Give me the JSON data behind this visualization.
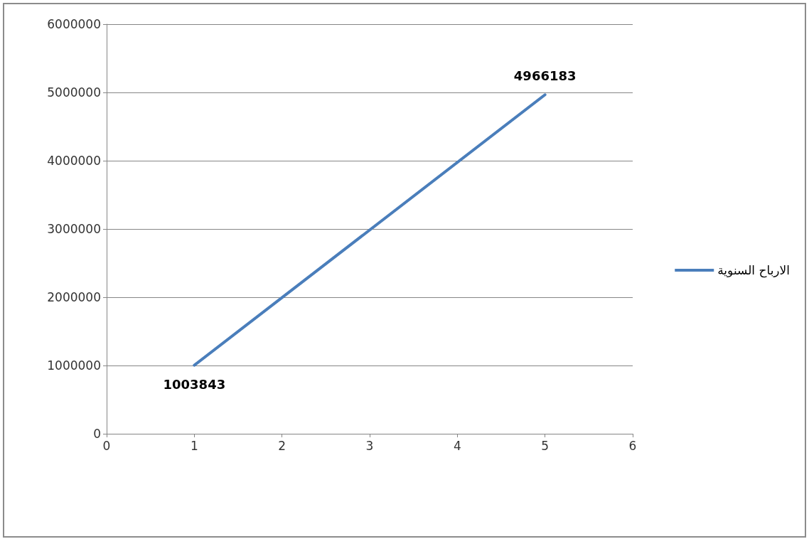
{
  "chart_data": {
    "type": "line",
    "x": [
      1,
      5
    ],
    "series": [
      {
        "name": "الارباح السنوية",
        "color": "#4a7ebb",
        "values": [
          1003843,
          4966183
        ]
      }
    ],
    "xlim": [
      0,
      6
    ],
    "xticks": [
      0,
      1,
      2,
      3,
      4,
      5,
      6
    ],
    "ylim": [
      0,
      6000000
    ],
    "yticks": [
      0,
      1000000,
      2000000,
      3000000,
      4000000,
      5000000,
      6000000
    ],
    "grid": "y",
    "legend": "right",
    "marker": "none",
    "line_style": "solid",
    "data_labels": true
  }
}
